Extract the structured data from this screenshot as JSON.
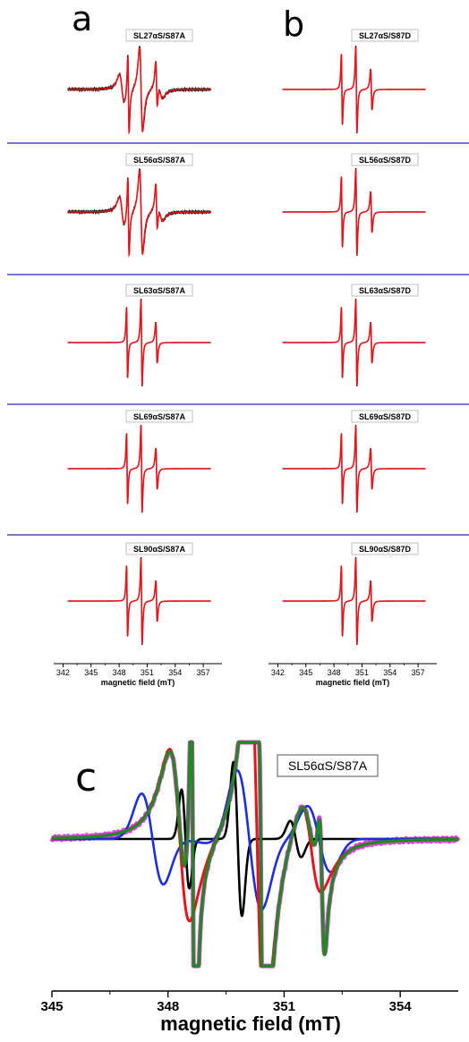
{
  "panel_letters": {
    "a": "a",
    "b": "b",
    "c": "c"
  },
  "colors": {
    "fit": "#e8141a",
    "experiment": "#000000",
    "divider": "#4a4ad8",
    "simulation_total": "#1f8a1f",
    "component_blue": "#1c2de0",
    "experiment_c": "#e040e0"
  },
  "chart_data": [
    {
      "type": "line",
      "panel": "a",
      "xlabel": "magnetic field (mT)",
      "xticks": [
        342,
        345,
        348,
        351,
        354,
        357
      ],
      "xlim": [
        341,
        359
      ],
      "grid": false,
      "rows": [
        {
          "label": "SL27αS/S87A",
          "broad": true
        },
        {
          "label": "SL56αS/S87A",
          "broad": true
        },
        {
          "label": "SL63αS/S87A",
          "broad": false
        },
        {
          "label": "SL69αS/S87A",
          "broad": false
        },
        {
          "label": "SL90αS/S87A",
          "broad": false
        }
      ],
      "series": [
        {
          "name": "",
          "color": "#000000"
        },
        {
          "name": "",
          "color": "#e8141a"
        }
      ]
    },
    {
      "type": "line",
      "panel": "b",
      "xlabel": "magnetic field (mT)",
      "xticks": [
        342,
        345,
        348,
        351,
        354,
        357
      ],
      "xlim": [
        341,
        359
      ],
      "grid": false,
      "rows": [
        {
          "label": "SL27αS/S87D",
          "broad": false
        },
        {
          "label": "SL56αS/S87D",
          "broad": false
        },
        {
          "label": "SL63αS/S87D",
          "broad": false
        },
        {
          "label": "SL69αS/S87D",
          "broad": false
        },
        {
          "label": "SL90αS/S87D",
          "broad": false
        }
      ],
      "series": [
        {
          "name": "",
          "color": "#000000"
        },
        {
          "name": "",
          "color": "#e8141a"
        }
      ]
    },
    {
      "type": "line",
      "panel": "c",
      "label": "SL56αS/S87A",
      "xlabel": "magnetic field (mT)",
      "xticks": [
        345,
        348,
        351,
        354
      ],
      "xlim": [
        345,
        355.5
      ],
      "grid": false,
      "series": [
        {
          "name": "",
          "color": "#e040e0"
        },
        {
          "name": "",
          "color": "#000000"
        },
        {
          "name": "",
          "color": "#1c2de0"
        },
        {
          "name": "",
          "color": "#e8141a"
        },
        {
          "name": "",
          "color": "#1f8a1f"
        }
      ]
    }
  ]
}
